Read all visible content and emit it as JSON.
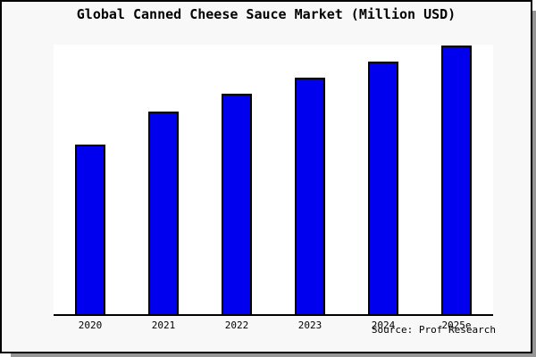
{
  "title": "Global Canned Cheese Sauce Market (Million USD)",
  "source": "Source: Prof Research",
  "colors": {
    "bar_fill": "#0000EE",
    "bar_border": "#000000",
    "figure_bg": "#f8f8f8",
    "plot_bg": "#ffffff",
    "frame": "#000000",
    "shadow": "#969696",
    "text": "#000000"
  },
  "chart_data": {
    "type": "bar",
    "title": "Global Canned Cheese Sauce Market (Million USD)",
    "categories": [
      "2020",
      "2021",
      "2022",
      "2023",
      "2024",
      "2025e"
    ],
    "values": [
      63.1,
      75.4,
      82.1,
      88.0,
      94.0,
      100.0
    ],
    "values_unit": "percent of tallest bar (y-axis shown without scale or tick labels)",
    "series_color": "#0000EE",
    "xlabel": "",
    "ylabel": "",
    "ylim": [
      0,
      100
    ],
    "grid": false,
    "legend": false,
    "annotations": [
      "Source: Prof Research"
    ]
  }
}
